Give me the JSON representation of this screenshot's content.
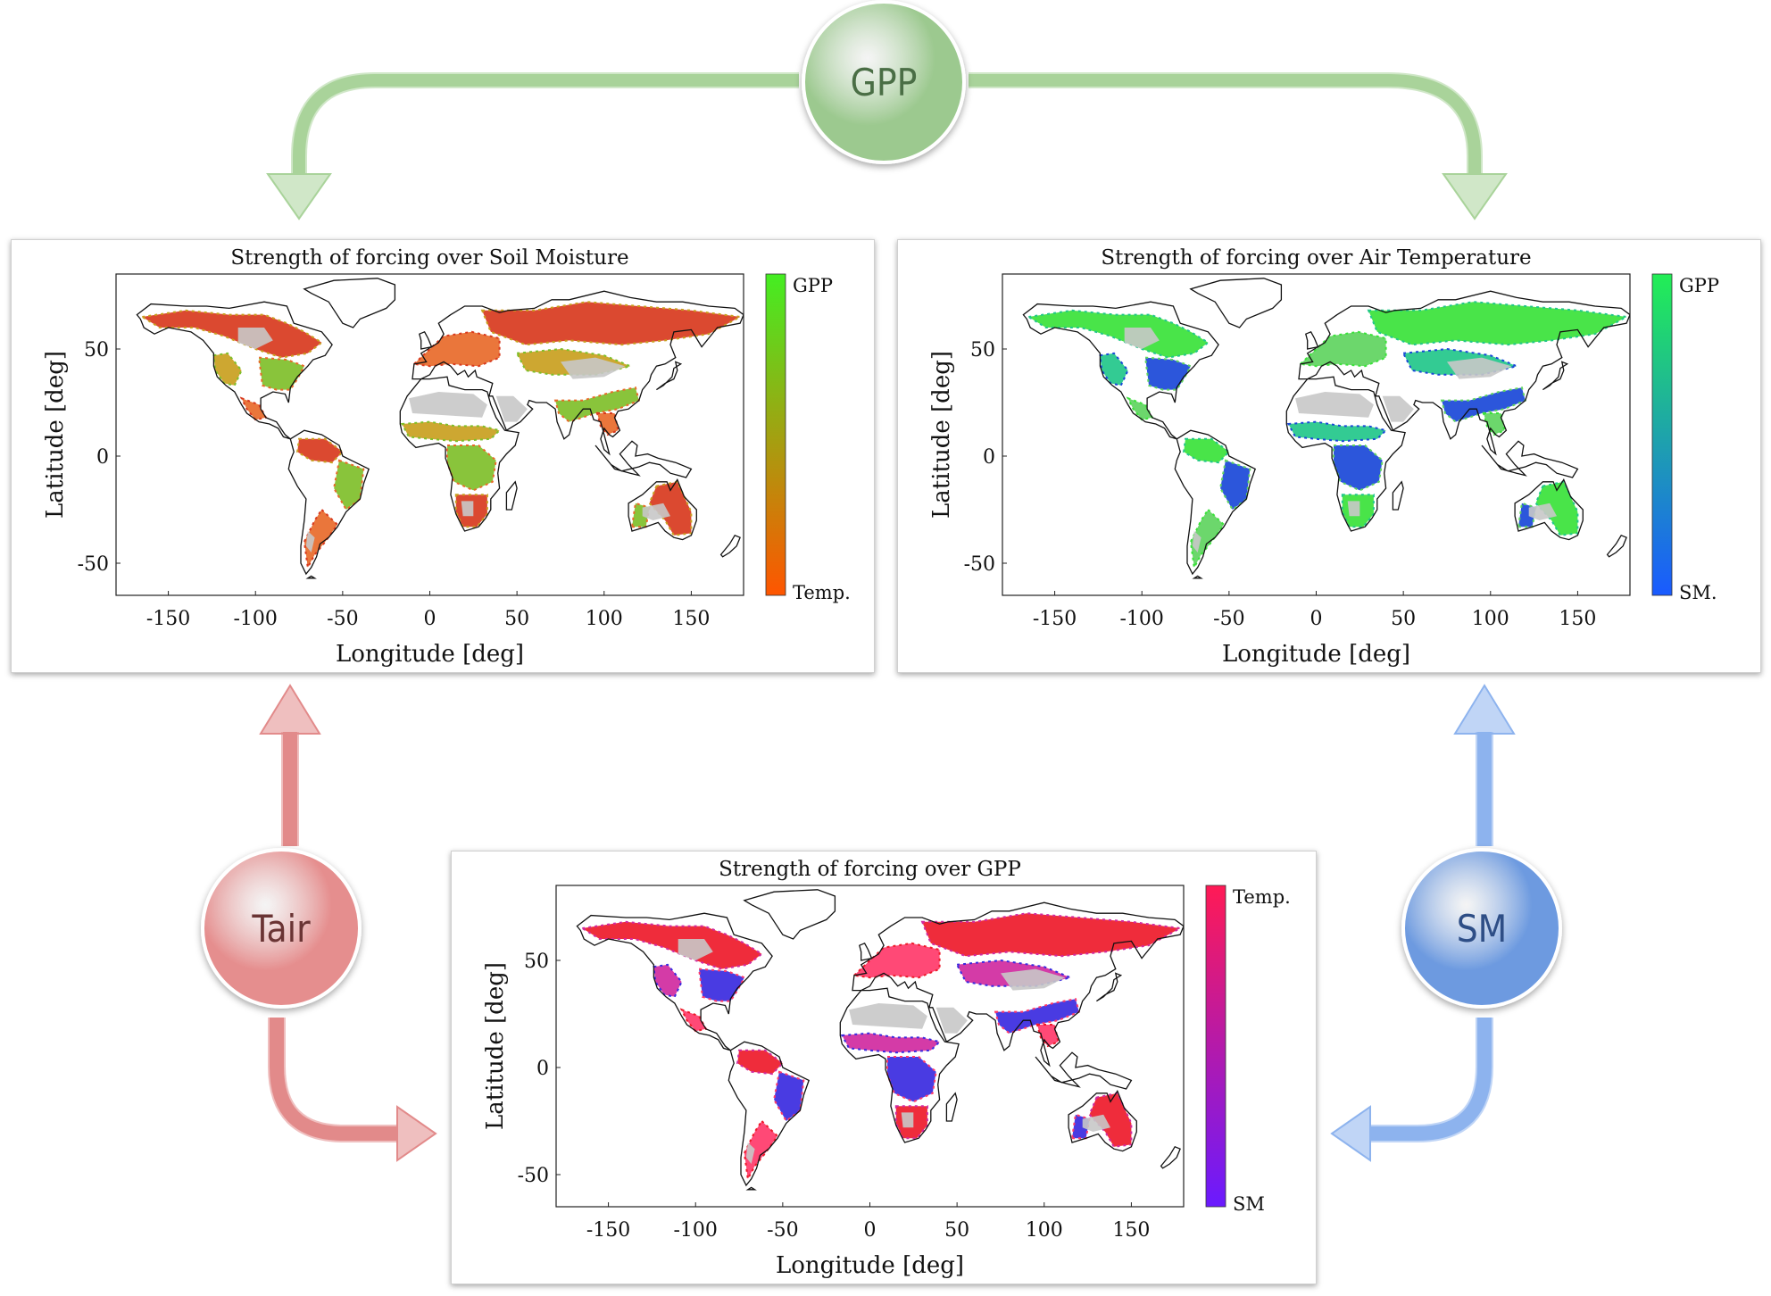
{
  "nodes": [
    {
      "id": "gpp",
      "label": "GPP",
      "color": "#9cc98f",
      "text_color": "#4a6e45"
    },
    {
      "id": "tair",
      "label": "Tair",
      "color": "#e58e8e",
      "text_color": "#6a3434"
    },
    {
      "id": "sm",
      "label": "SM",
      "color": "#6d9ae0",
      "text_color": "#2e4e86"
    }
  ],
  "arrow_colors": {
    "gpp": "#a9d39a",
    "tair": "#e28a8a",
    "sm": "#8db3ee"
  },
  "panels": [
    {
      "id": "soil-moisture",
      "title": "Strength of forcing over Soil Moisture",
      "xlabel": "Longitude [deg]",
      "ylabel": "Latitude [deg]",
      "xticks": [
        "-150",
        "-100",
        "-50",
        "0",
        "50",
        "100",
        "150"
      ],
      "yticks": [
        "50",
        "0",
        "-50"
      ],
      "colorbar": {
        "top_label": "GPP",
        "bottom_label": "Temp.",
        "top_color": "#44ee22",
        "bottom_color": "#ff5500"
      },
      "fill_colors": [
        "#d83a1e",
        "#c9a020",
        "#7fbf2a",
        "#e86a2a"
      ]
    },
    {
      "id": "air-temperature",
      "title": "Strength of forcing over Air Temperature",
      "xlabel": "Longitude [deg]",
      "ylabel": "Latitude [deg]",
      "xticks": [
        "-150",
        "-100",
        "-50",
        "0",
        "50",
        "100",
        "150"
      ],
      "yticks": [
        "50",
        "0",
        "-50"
      ],
      "colorbar": {
        "top_label": "GPP",
        "bottom_label": "SM.",
        "top_color": "#22ee55",
        "bottom_color": "#1a5aff"
      },
      "fill_colors": [
        "#3ae23a",
        "#22c78a",
        "#1a48d8",
        "#5fd45f"
      ]
    },
    {
      "id": "gpp",
      "title": "Strength of forcing over GPP",
      "xlabel": "Longitude [deg]",
      "ylabel": "Latitude [deg]",
      "xticks": [
        "-150",
        "-100",
        "-50",
        "0",
        "50",
        "100",
        "150"
      ],
      "yticks": [
        "50",
        "0",
        "-50"
      ],
      "colorbar": {
        "top_label": "Temp.",
        "bottom_label": "SM",
        "top_color": "#ff1a55",
        "bottom_color": "#6a1aff"
      },
      "fill_colors": [
        "#ee1a2a",
        "#d02aa0",
        "#3a2ae0",
        "#ff3a6a"
      ]
    }
  ]
}
